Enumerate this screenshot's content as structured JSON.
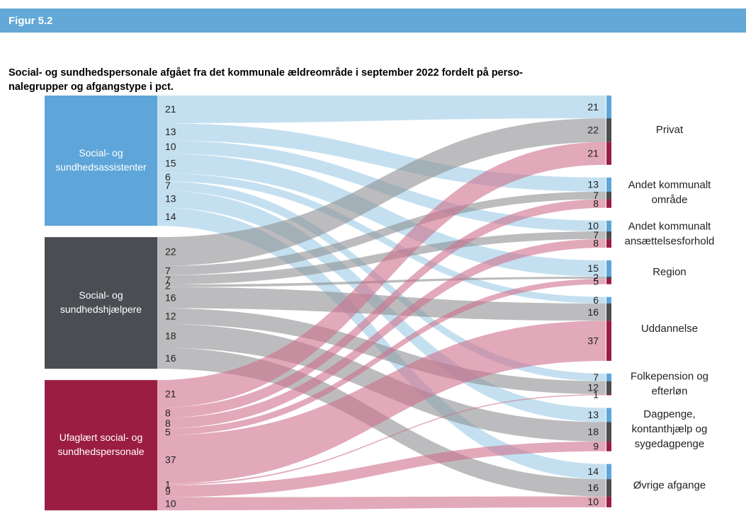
{
  "chart_data": {
    "type": "sankey",
    "header": "Figur 5.2",
    "title_lines": [
      "Social- og sundhedspersonale afgået fra det kommunale ældreområde i september 2022 fordelt på perso-",
      "nalegrupper og afgangstype i pct."
    ],
    "sources": [
      {
        "name": [
          "Social- og",
          "sundhedsassistenter"
        ],
        "color": "#5ea6d9",
        "flow_color": "#9ccbe6"
      },
      {
        "name": [
          "Social- og",
          "sundhedshjælpere"
        ],
        "color": "#4a4d52",
        "flow_color": "#8f9092"
      },
      {
        "name": [
          "Ufaglært social- og",
          "sundhedspersonale"
        ],
        "color": "#9b1d42",
        "flow_color": "#cf6f8c"
      }
    ],
    "targets": [
      [
        "Privat"
      ],
      [
        "Andet kommunalt",
        "område"
      ],
      [
        "Andet kommunalt",
        "ansættelsesforhold"
      ],
      [
        "Region"
      ],
      [
        "Uddannelse"
      ],
      [
        "Folkepension og",
        "efterløn"
      ],
      [
        "Dagpenge,",
        "kontanthjælp og",
        "sygedagpenge"
      ],
      [
        "Øvrige afgange"
      ]
    ],
    "flows": [
      [
        21,
        13,
        10,
        15,
        6,
        7,
        13,
        14
      ],
      [
        22,
        7,
        7,
        2,
        16,
        12,
        18,
        16
      ],
      [
        21,
        8,
        8,
        5,
        37,
        1,
        9,
        10
      ]
    ]
  }
}
